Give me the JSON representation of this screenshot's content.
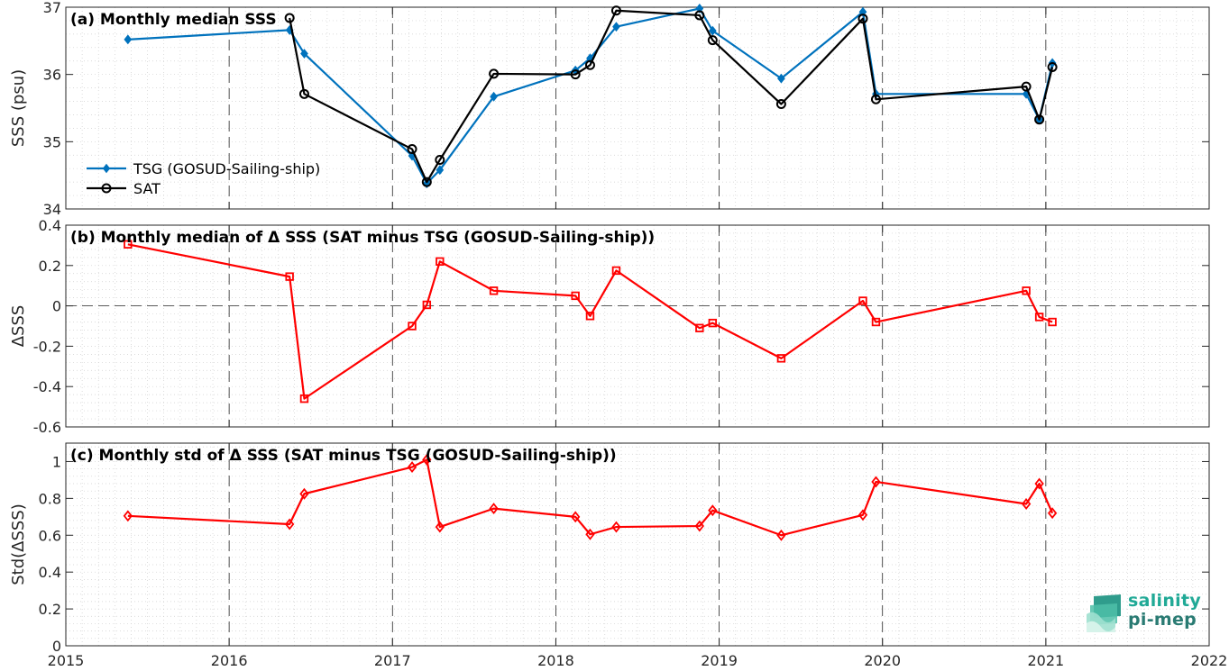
{
  "chart_data": [
    {
      "type": "line",
      "title": "(a) Monthly median SSS",
      "ylabel": "SSS (psu)",
      "xlim": [
        2015,
        2022
      ],
      "ylim": [
        34,
        37
      ],
      "yticks": [
        34,
        35,
        36,
        37
      ],
      "grid": true,
      "legend_position": "left",
      "series": [
        {
          "name": "TSG (GOSUD-Sailing-ship)",
          "color": "#0072bd",
          "marker": "diamond",
          "x": [
            2015.38,
            2016.37,
            2016.46,
            2017.12,
            2017.21,
            2017.29,
            2017.62,
            2018.12,
            2018.21,
            2018.37,
            2018.88,
            2018.96,
            2019.38,
            2019.88,
            2019.96,
            2020.88,
            2020.96,
            2021.04
          ],
          "y": [
            36.52,
            36.66,
            36.31,
            34.79,
            34.38,
            34.58,
            35.67,
            36.06,
            36.24,
            36.71,
            36.98,
            36.65,
            35.94,
            36.93,
            35.71,
            35.71,
            35.33,
            36.17
          ]
        },
        {
          "name": "SAT",
          "color": "#000000",
          "marker": "circle",
          "x": [
            2016.37,
            2016.46,
            2017.12,
            2017.21,
            2017.29,
            2017.62,
            2018.12,
            2018.21,
            2018.37,
            2018.88,
            2018.96,
            2019.38,
            2019.88,
            2019.96,
            2020.88,
            2020.96,
            2021.04
          ],
          "y": [
            36.84,
            35.71,
            34.89,
            34.4,
            34.73,
            36.01,
            36.0,
            36.14,
            36.95,
            36.88,
            36.51,
            35.56,
            36.83,
            35.63,
            35.82,
            35.33,
            36.11
          ]
        }
      ]
    },
    {
      "type": "line",
      "title": "(b) Monthly median of Δ SSS (SAT minus TSG (GOSUD-Sailing-ship))",
      "ylabel": "ΔSSS",
      "xlim": [
        2015,
        2022
      ],
      "ylim": [
        -0.6,
        0.4
      ],
      "yticks": [
        -0.6,
        -0.4,
        -0.2,
        0,
        0.2,
        0.4
      ],
      "ytick_labels": [
        "-0.6",
        "-0.4",
        "-0.2",
        "0",
        "0.2",
        "0.4"
      ],
      "grid": true,
      "zero_line": true,
      "series": [
        {
          "color": "#ff0000",
          "marker": "square",
          "x": [
            2015.38,
            2016.37,
            2016.46,
            2017.12,
            2017.21,
            2017.29,
            2017.62,
            2018.12,
            2018.21,
            2018.37,
            2018.88,
            2018.96,
            2019.38,
            2019.88,
            2019.96,
            2020.88,
            2020.96,
            2021.04
          ],
          "y": [
            0.305,
            0.145,
            -0.46,
            -0.1,
            0.005,
            0.22,
            0.075,
            0.05,
            -0.05,
            0.175,
            -0.11,
            -0.085,
            -0.26,
            0.025,
            -0.08,
            0.075,
            -0.055,
            -0.08
          ]
        }
      ]
    },
    {
      "type": "line",
      "title": "(c) Monthly std of Δ SSS (SAT minus TSG (GOSUD-Sailing-ship))",
      "ylabel": "Std(ΔSSS)",
      "xlim": [
        2015,
        2022
      ],
      "ylim": [
        0,
        1.1
      ],
      "yticks": [
        0,
        0.2,
        0.4,
        0.6,
        0.8,
        1
      ],
      "ytick_labels": [
        "0",
        "0.2",
        "0.4",
        "0.6",
        "0.8",
        "1"
      ],
      "grid": true,
      "series": [
        {
          "color": "#ff0000",
          "marker": "diamond",
          "x": [
            2015.38,
            2016.37,
            2016.46,
            2017.12,
            2017.21,
            2017.29,
            2017.62,
            2018.12,
            2018.21,
            2018.37,
            2018.88,
            2018.96,
            2019.38,
            2019.88,
            2019.96,
            2020.88,
            2020.96,
            2021.04
          ],
          "y": [
            0.705,
            0.66,
            0.825,
            0.97,
            1.01,
            0.645,
            0.745,
            0.7,
            0.605,
            0.645,
            0.65,
            0.735,
            0.6,
            0.71,
            0.89,
            0.77,
            0.88,
            0.72
          ]
        }
      ]
    }
  ],
  "xticks": [
    2015,
    2016,
    2017,
    2018,
    2019,
    2020,
    2021,
    2022
  ],
  "logo": {
    "line1": "salinity",
    "line2": "pi-mep"
  }
}
